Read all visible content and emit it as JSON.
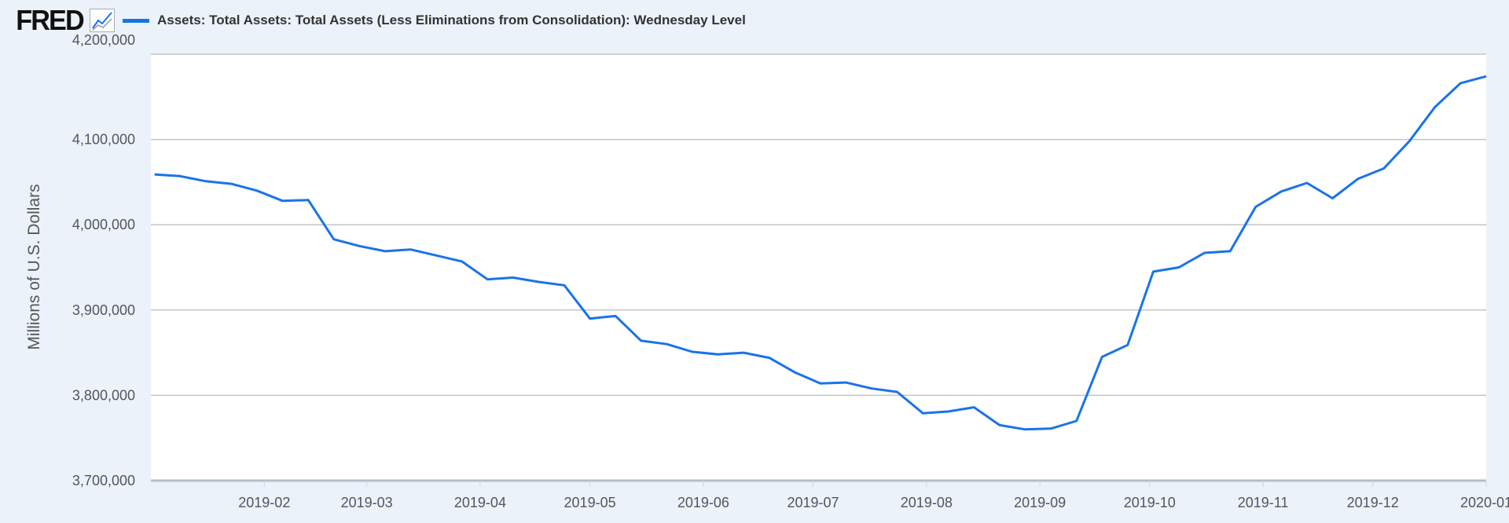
{
  "header": {
    "logo": "FRED",
    "logo_icon": "line-chart-icon"
  },
  "chart_data": {
    "type": "line",
    "title": "",
    "xlabel": "",
    "ylabel": "Millions of U.S. Dollars",
    "ylim": [
      3700000,
      4200000
    ],
    "xlim": [
      "2019-01-01",
      "2020-01-01"
    ],
    "grid": "horizontal",
    "legend_placement": "top-left",
    "yticks": [
      3700000,
      3800000,
      3900000,
      4000000,
      4100000,
      4200000
    ],
    "ytick_labels": [
      "3,700,000",
      "3,800,000",
      "3,900,000",
      "4,000,000",
      "4,100,000",
      "4,200,000"
    ],
    "xticks": [
      "2019-02-01",
      "2019-03-01",
      "2019-04-01",
      "2019-05-01",
      "2019-06-01",
      "2019-07-01",
      "2019-08-01",
      "2019-09-01",
      "2019-10-01",
      "2019-11-01",
      "2019-12-01",
      "2020-01-01"
    ],
    "xtick_labels": [
      "2019-02",
      "2019-03",
      "2019-04",
      "2019-05",
      "2019-06",
      "2019-07",
      "2019-08",
      "2019-09",
      "2019-10",
      "2019-11",
      "2019-12",
      "2020-01"
    ],
    "series": [
      {
        "name": "Assets: Total Assets: Total Assets (Less Eliminations from Consolidation): Wednesday Level",
        "color": "#1a73e8",
        "start": "2019-01-02",
        "frequency": "weekly",
        "values": [
          4059000,
          4057000,
          4051000,
          4048000,
          4040000,
          4028000,
          4029000,
          3983000,
          3975000,
          3969000,
          3971000,
          3964000,
          3957000,
          3936000,
          3938000,
          3933000,
          3929000,
          3890000,
          3893000,
          3864000,
          3860000,
          3851000,
          3848000,
          3850000,
          3844000,
          3827000,
          3814000,
          3815000,
          3808000,
          3804000,
          3779000,
          3781000,
          3786000,
          3765000,
          3760000,
          3761000,
          3770000,
          3845000,
          3859000,
          3945000,
          3950000,
          3967000,
          3969000,
          4021000,
          4039000,
          4049000,
          4031000,
          4054000,
          4066000,
          4098000,
          4138000,
          4166000,
          4174000
        ]
      }
    ]
  }
}
